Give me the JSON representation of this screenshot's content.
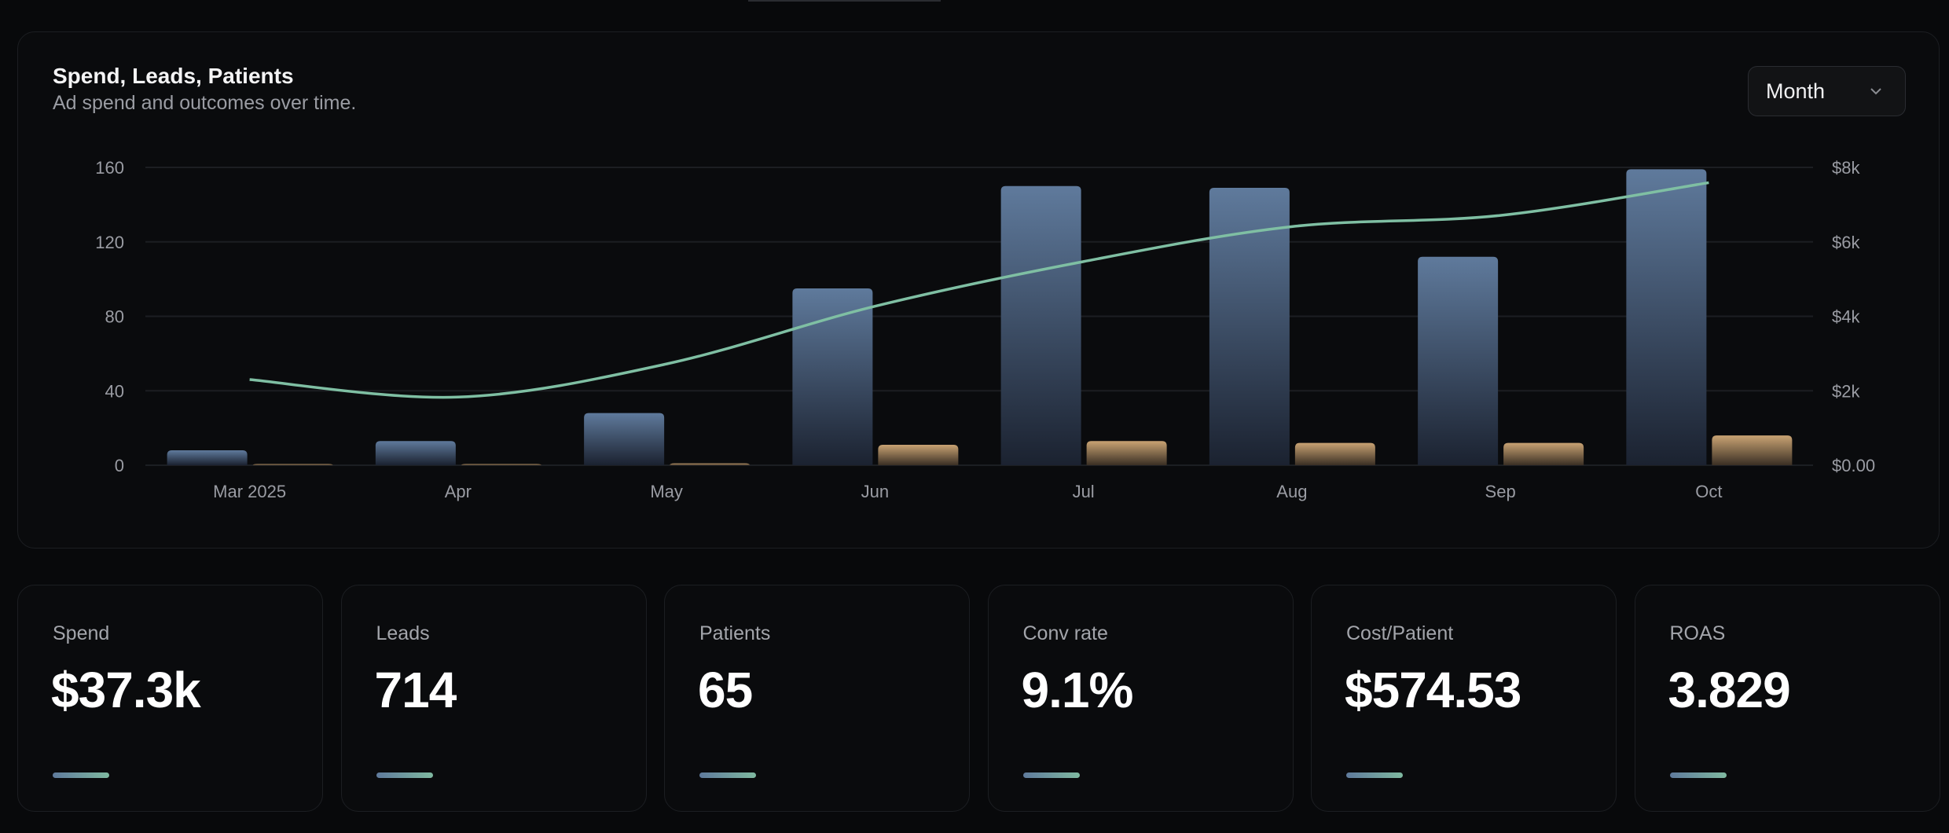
{
  "chart_card": {
    "title": "Spend, Leads, Patients",
    "subtitle": "Ad spend and outcomes over time.",
    "period_select": {
      "value": "Month",
      "icon": "chevron-down-icon"
    }
  },
  "chart_data": {
    "type": "bar",
    "categories": [
      "Mar 2025",
      "Apr",
      "May",
      "Jun",
      "Jul",
      "Aug",
      "Sep",
      "Oct"
    ],
    "series": [
      {
        "key": "leads",
        "type": "bar",
        "axis": "left",
        "color": "#5f7a9c",
        "values": [
          8,
          13,
          28,
          95,
          150,
          149,
          112,
          159
        ]
      },
      {
        "key": "patients",
        "type": "bar",
        "axis": "left",
        "color": "#c9a373",
        "values": [
          0,
          0,
          1,
          11,
          13,
          12,
          12,
          16
        ]
      },
      {
        "key": "spend",
        "type": "line",
        "axis": "right",
        "color": "#7fbfa3",
        "values": [
          2300,
          1830,
          2720,
          4270,
          5470,
          6410,
          6710,
          7590
        ]
      }
    ],
    "left_axis": {
      "ylim": [
        0,
        160
      ],
      "ticks": [
        0,
        40,
        80,
        120,
        160
      ],
      "tick_labels": [
        "0",
        "40",
        "80",
        "120",
        "160"
      ]
    },
    "right_axis": {
      "ylim": [
        0,
        8000
      ],
      "ticks": [
        0,
        2000,
        4000,
        6000,
        8000
      ],
      "tick_labels": [
        "$0.00",
        "$2k",
        "$4k",
        "$6k",
        "$8k"
      ]
    },
    "grid": true,
    "legend": "none"
  },
  "stats": [
    {
      "label": "Spend",
      "value": "$37.3k"
    },
    {
      "label": "Leads",
      "value": "714"
    },
    {
      "label": "Patients",
      "value": "65"
    },
    {
      "label": "Conv rate",
      "value": "9.1%"
    },
    {
      "label": "Cost/Patient",
      "value": "$574.53"
    },
    {
      "label": "ROAS",
      "value": "3.829"
    }
  ]
}
